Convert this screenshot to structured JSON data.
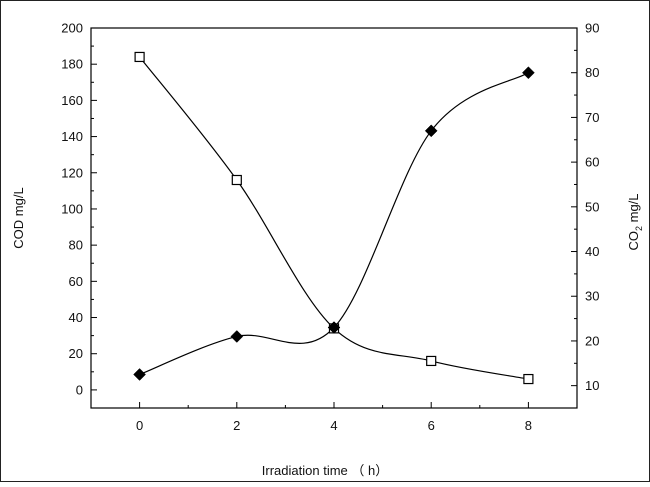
{
  "chart_data": {
    "type": "line",
    "title": "",
    "xlabel": "Irradiation time （ h）",
    "ylabel_left": "COD mg/L",
    "ylabel_right_main": "CO",
    "ylabel_right_sub": "2",
    "ylabel_right_tail": " mg/L",
    "x": [
      0,
      2,
      4,
      6,
      8
    ],
    "xlim": [
      -1,
      9
    ],
    "xticks": [
      0,
      2,
      4,
      6,
      8
    ],
    "ylim_left": [
      -10,
      200
    ],
    "yticks_left": [
      0,
      20,
      40,
      60,
      80,
      100,
      120,
      140,
      160,
      180,
      200
    ],
    "ylim_right": [
      5,
      90
    ],
    "yticks_right": [
      10,
      20,
      30,
      40,
      50,
      60,
      70,
      80,
      90
    ],
    "grid": false,
    "legend": "none",
    "series": [
      {
        "axis": "left",
        "marker": "open-square",
        "color": "#000000",
        "values": [
          184,
          116,
          34,
          16,
          6
        ]
      },
      {
        "axis": "right",
        "marker": "filled-diamond",
        "color": "#000000",
        "values": [
          12.5,
          21,
          23,
          67,
          80
        ]
      }
    ]
  }
}
